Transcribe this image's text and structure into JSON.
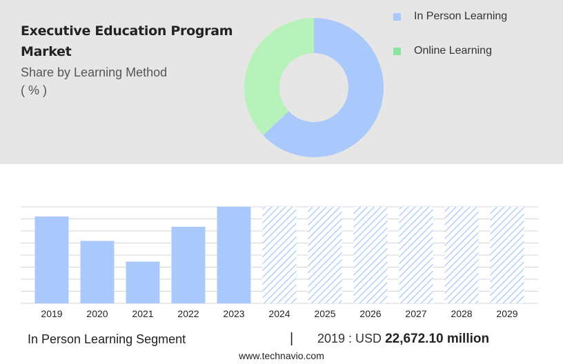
{
  "header": {
    "title": "Executive Education Program Market",
    "subtitle_line1": "Share by Learning Method",
    "subtitle_line2": "( % )"
  },
  "legend": [
    {
      "label": "In Person Learning",
      "color": "#a9c8fc"
    },
    {
      "label": "Online Learning",
      "color": "#8be3a0"
    }
  ],
  "footer": {
    "segment": "In Person Learning Segment",
    "separator": "|",
    "year_label": "2019 : USD ",
    "value": "22,672.10 million"
  },
  "source": "www.technavio.com",
  "chart_data": [
    {
      "type": "pie",
      "donut": true,
      "labels": [
        "In Person Learning",
        "Online Learning"
      ],
      "values": [
        63,
        37
      ],
      "colors": [
        "#a9c8fc",
        "#b8f2bb"
      ]
    },
    {
      "type": "bar",
      "categories": [
        "2019",
        "2020",
        "2021",
        "2022",
        "2023",
        "2024",
        "2025",
        "2026",
        "2027",
        "2028",
        "2029"
      ],
      "values": [
        22672.1,
        16300,
        10900,
        20000,
        25200,
        null,
        null,
        null,
        null,
        null,
        null
      ],
      "forecast_values": [
        null,
        null,
        null,
        null,
        null,
        25200,
        25200,
        25200,
        25200,
        25200,
        25200
      ],
      "ylim": [
        0,
        25200
      ],
      "grid": true,
      "bar_color": "#a9c8fc",
      "forecast_style": "hatched"
    }
  ]
}
